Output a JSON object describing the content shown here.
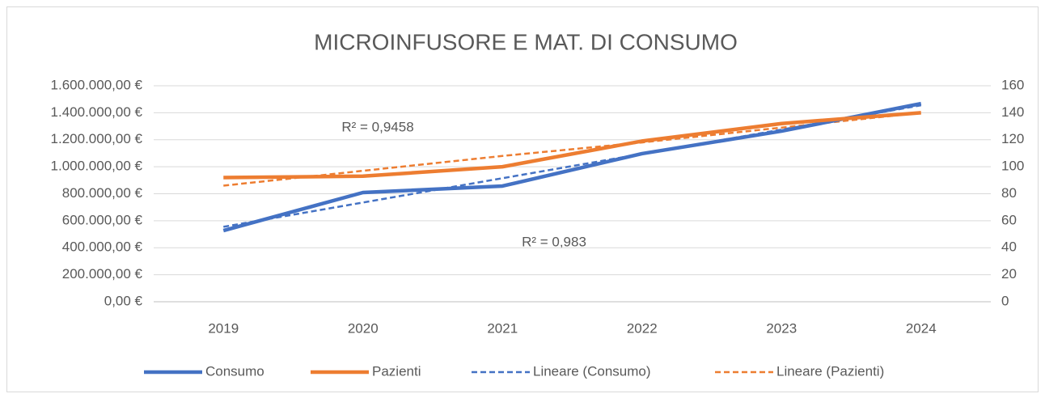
{
  "chart_data": {
    "type": "line",
    "title": "MICROINFUSORE E MAT. DI CONSUMO",
    "categories": [
      "2019",
      "2020",
      "2021",
      "2022",
      "2023",
      "2024"
    ],
    "series": [
      {
        "name": "Consumo",
        "color": "#4472c4",
        "values": [
          527000,
          809000,
          857000,
          1097000,
          1264000,
          1468000
        ]
      },
      {
        "name": "Pazienti",
        "color": "#ed7d31",
        "axis": "y2",
        "values": [
          92,
          93,
          100,
          119,
          132,
          140
        ]
      },
      {
        "name": "Lineare (Consumo)",
        "color": "#4472c4",
        "dashed": true,
        "values": [
          555000,
          735000,
          915000,
          1095000,
          1275000,
          1455000
        ]
      },
      {
        "name": "Lineare (Pazienti)",
        "color": "#ed7d31",
        "dashed": true,
        "axis": "y2",
        "values": [
          86,
          97,
          108,
          118,
          129,
          140
        ]
      }
    ],
    "annotations": [
      "R² = 0,9458",
      "R² = 0,983"
    ],
    "ylim": [
      0,
      1600000
    ],
    "yticks": [
      {
        "value": 0,
        "label": "0,00 €"
      },
      {
        "value": 200000,
        "label": "200.000,00 €"
      },
      {
        "value": 400000,
        "label": "400.000,00 €"
      },
      {
        "value": 600000,
        "label": "600.000,00 €"
      },
      {
        "value": 800000,
        "label": "800.000,00 €"
      },
      {
        "value": 1000000,
        "label": "1.000.000,00 €"
      },
      {
        "value": 1200000,
        "label": "1.200.000,00 €"
      },
      {
        "value": 1400000,
        "label": "1.400.000,00 €"
      },
      {
        "value": 1600000,
        "label": "1.600.000,00 €"
      }
    ],
    "y2lim": [
      0,
      160
    ],
    "y2ticks": [
      0,
      20,
      40,
      60,
      80,
      100,
      120,
      140,
      160
    ],
    "grid": true,
    "legend": "bottom"
  }
}
